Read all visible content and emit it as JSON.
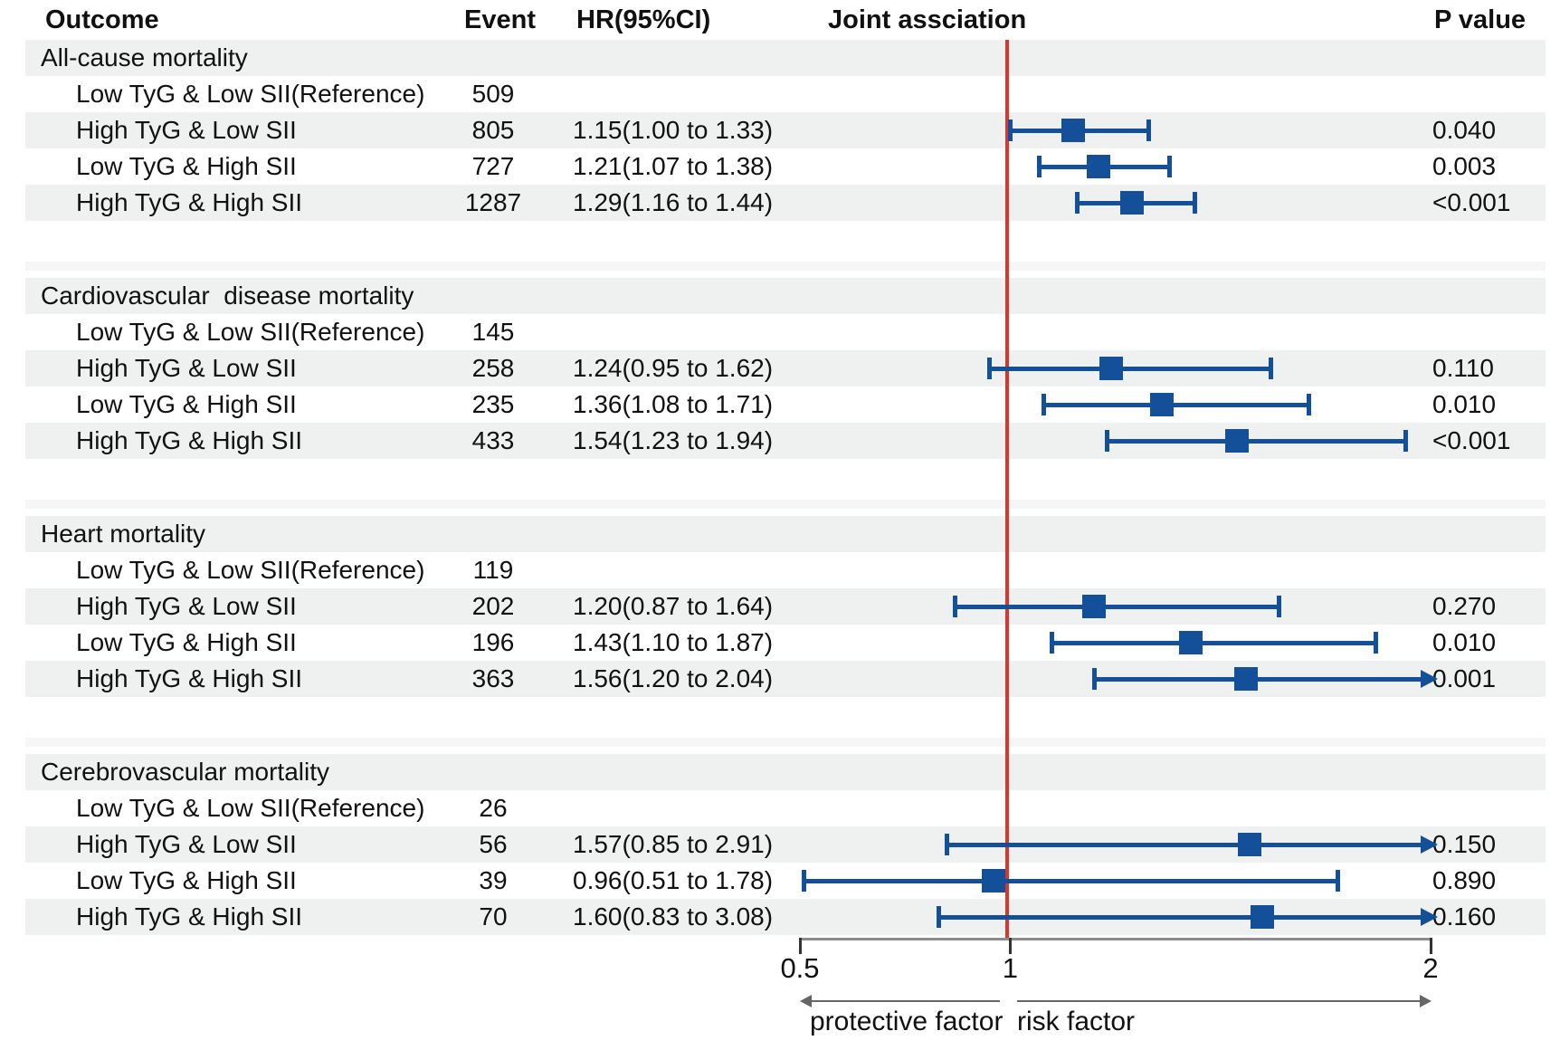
{
  "header": {
    "outcome": "Outcome",
    "event": "Event",
    "hr": "HR(95%CI)",
    "joint": "Joint assciation",
    "pvalue": "P value"
  },
  "colors": {
    "marker_blue": "#14509a",
    "reference_red": "#da362b",
    "row_stripe": "#eff1f0",
    "gap_stripe": "#f5f6f5",
    "axis_gray": "#8c8c8c"
  },
  "chart_data": {
    "type": "scatter",
    "subtype": "forest-plot",
    "x_axis": {
      "scale": "linear",
      "min": 0.5,
      "max": 2,
      "ticks": [
        "0.5",
        "1",
        "2"
      ],
      "tick_values": [
        0.5,
        1,
        2
      ],
      "reference_line": 1,
      "left_arrow_label": "protective factor",
      "right_arrow_label": "risk factor",
      "grid": false
    },
    "sections": [
      {
        "title": "All-cause mortality",
        "rows": [
          {
            "label": "Low TyG & Low SII(Reference)",
            "event": "509",
            "hr_text": "",
            "hr": null,
            "lo": null,
            "hi": null,
            "p": ""
          },
          {
            "label": "High TyG & Low SII",
            "event": "805",
            "hr_text": "1.15(1.00 to 1.33)",
            "hr": 1.15,
            "lo": 1.0,
            "hi": 1.33,
            "p": "0.040"
          },
          {
            "label": "Low TyG & High SII",
            "event": "727",
            "hr_text": "1.21(1.07 to 1.38)",
            "hr": 1.21,
            "lo": 1.07,
            "hi": 1.38,
            "p": "0.003"
          },
          {
            "label": "High TyG & High SII",
            "event": "1287",
            "hr_text": "1.29(1.16 to 1.44)",
            "hr": 1.29,
            "lo": 1.16,
            "hi": 1.44,
            "p": "<0.001"
          }
        ]
      },
      {
        "title": "Cardiovascular  disease mortality",
        "rows": [
          {
            "label": "Low TyG & Low SII(Reference)",
            "event": "145",
            "hr_text": "",
            "hr": null,
            "lo": null,
            "hi": null,
            "p": ""
          },
          {
            "label": "High TyG & Low SII",
            "event": "258",
            "hr_text": "1.24(0.95 to 1.62)",
            "hr": 1.24,
            "lo": 0.95,
            "hi": 1.62,
            "p": "0.110"
          },
          {
            "label": "Low TyG & High SII",
            "event": "235",
            "hr_text": "1.36(1.08 to 1.71)",
            "hr": 1.36,
            "lo": 1.08,
            "hi": 1.71,
            "p": "0.010"
          },
          {
            "label": "High TyG & High SII",
            "event": "433",
            "hr_text": "1.54(1.23 to 1.94)",
            "hr": 1.54,
            "lo": 1.23,
            "hi": 1.94,
            "p": "<0.001"
          }
        ]
      },
      {
        "title": "Heart mortality",
        "rows": [
          {
            "label": "Low TyG & Low SII(Reference)",
            "event": "119",
            "hr_text": "",
            "hr": null,
            "lo": null,
            "hi": null,
            "p": ""
          },
          {
            "label": "High TyG & Low SII",
            "event": "202",
            "hr_text": "1.20(0.87 to 1.64)",
            "hr": 1.2,
            "lo": 0.87,
            "hi": 1.64,
            "p": "0.270"
          },
          {
            "label": "Low TyG & High SII",
            "event": "196",
            "hr_text": "1.43(1.10 to 1.87)",
            "hr": 1.43,
            "lo": 1.1,
            "hi": 1.87,
            "p": "0.010"
          },
          {
            "label": "High TyG & High SII",
            "event": "363",
            "hr_text": "1.56(1.20 to 2.04)",
            "hr": 1.56,
            "lo": 1.2,
            "hi": 2.04,
            "p": "0.001"
          }
        ]
      },
      {
        "title": "Cerebrovascular mortality",
        "rows": [
          {
            "label": "Low TyG & Low SII(Reference)",
            "event": "26",
            "hr_text": "",
            "hr": null,
            "lo": null,
            "hi": null,
            "p": ""
          },
          {
            "label": "High TyG & Low SII",
            "event": "56",
            "hr_text": "1.57(0.85 to 2.91)",
            "hr": 1.57,
            "lo": 0.85,
            "hi": 2.91,
            "p": "0.150"
          },
          {
            "label": "Low TyG & High SII",
            "event": "39",
            "hr_text": "0.96(0.51 to 1.78)",
            "hr": 0.96,
            "lo": 0.51,
            "hi": 1.78,
            "p": "0.890"
          },
          {
            "label": "High TyG & High SII",
            "event": "70",
            "hr_text": "1.60(0.83 to 3.08)",
            "hr": 1.6,
            "lo": 0.83,
            "hi": 3.08,
            "p": "0.160"
          }
        ]
      }
    ]
  }
}
